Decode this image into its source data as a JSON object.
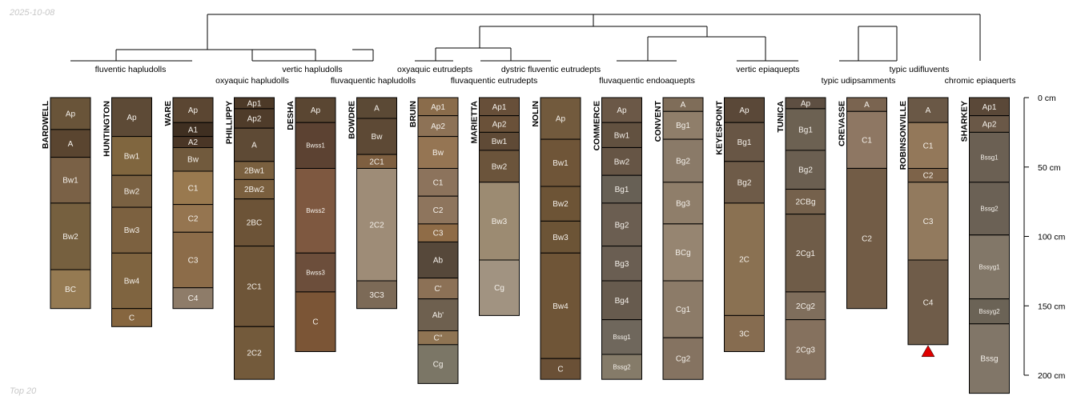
{
  "date_stamp": "2025-10-08",
  "caption": "Top 20",
  "taxa_labels": [
    "fluventic hapludolls",
    "vertic hapludolls",
    "oxyaquic hapludolls",
    "fluvaquentic hapludolls",
    "oxyaquic eutrudepts",
    "dystric fluventic eutrudepts",
    "fluvaquentic eutrudepts",
    "fluvaquentic endoaquepts",
    "vertic epiaquepts",
    "typic udifluvents",
    "typic udipsamments",
    "chromic epiaquerts"
  ],
  "depth_axis": {
    "ticks": [
      0,
      50,
      100,
      150,
      200
    ],
    "unit": "cm"
  },
  "profiles": [
    {
      "name": "BARDWELL",
      "horizons": [
        {
          "name": "Ap",
          "top": 0,
          "bottom": 23,
          "color": "#695439"
        },
        {
          "name": "A",
          "top": 23,
          "bottom": 43,
          "color": "#5a4530"
        },
        {
          "name": "Bw1",
          "top": 43,
          "bottom": 76,
          "color": "#7a6146"
        },
        {
          "name": "Bw2",
          "top": 76,
          "bottom": 124,
          "color": "#76603f"
        },
        {
          "name": "BC",
          "top": 124,
          "bottom": 152,
          "color": "#957a52"
        }
      ]
    },
    {
      "name": "HUNTINGTON",
      "horizons": [
        {
          "name": "Ap",
          "top": 0,
          "bottom": 28,
          "color": "#5d4a36"
        },
        {
          "name": "Bw1",
          "top": 28,
          "bottom": 56,
          "color": "#80663f"
        },
        {
          "name": "Bw2",
          "top": 56,
          "bottom": 79,
          "color": "#7a6142"
        },
        {
          "name": "Bw3",
          "top": 79,
          "bottom": 112,
          "color": "#7c6140"
        },
        {
          "name": "Bw4",
          "top": 112,
          "bottom": 152,
          "color": "#7f6440"
        },
        {
          "name": "C",
          "top": 152,
          "bottom": 165,
          "color": "#86663f"
        }
      ]
    },
    {
      "name": "WARE",
      "horizons": [
        {
          "name": "Ap",
          "top": 0,
          "bottom": 18,
          "color": "#5b4632"
        },
        {
          "name": "A1",
          "top": 18,
          "bottom": 28,
          "color": "#3f2f21"
        },
        {
          "name": "A2",
          "top": 28,
          "bottom": 36,
          "color": "#4a3626"
        },
        {
          "name": "Bw",
          "top": 36,
          "bottom": 53,
          "color": "#715a3d"
        },
        {
          "name": "C1",
          "top": 53,
          "bottom": 77,
          "color": "#99794f"
        },
        {
          "name": "C2",
          "top": 77,
          "bottom": 97,
          "color": "#957550"
        },
        {
          "name": "C3",
          "top": 97,
          "bottom": 137,
          "color": "#8c6c49"
        },
        {
          "name": "C4",
          "top": 137,
          "bottom": 152,
          "color": "#8e7c69"
        }
      ]
    },
    {
      "name": "PHILLIPPY",
      "horizons": [
        {
          "name": "Ap1",
          "top": 0,
          "bottom": 8,
          "color": "#4d3a28"
        },
        {
          "name": "Ap2",
          "top": 8,
          "bottom": 22,
          "color": "#4f3c2a"
        },
        {
          "name": "A",
          "top": 22,
          "bottom": 46,
          "color": "#5e4a35"
        },
        {
          "name": "2Bw1",
          "top": 46,
          "bottom": 59,
          "color": "#7a603f"
        },
        {
          "name": "2Bw2",
          "top": 59,
          "bottom": 73,
          "color": "#7a5f3e"
        },
        {
          "name": "2BC",
          "top": 73,
          "bottom": 107,
          "color": "#6c5337"
        },
        {
          "name": "2C1",
          "top": 107,
          "bottom": 165,
          "color": "#6e5538"
        },
        {
          "name": "2C2",
          "top": 165,
          "bottom": 203,
          "color": "#735a3b"
        }
      ]
    },
    {
      "name": "DESHA",
      "horizons": [
        {
          "name": "Ap",
          "top": 0,
          "bottom": 18,
          "color": "#5a4632"
        },
        {
          "name": "Bwss1",
          "top": 18,
          "bottom": 51,
          "color": "#5c4232"
        },
        {
          "name": "Bwss2",
          "top": 51,
          "bottom": 112,
          "color": "#7e5840"
        },
        {
          "name": "Bwss3",
          "top": 112,
          "bottom": 140,
          "color": "#6c4e3b"
        },
        {
          "name": "C",
          "top": 140,
          "bottom": 183,
          "color": "#7b5536"
        }
      ]
    },
    {
      "name": "BOWDRE",
      "horizons": [
        {
          "name": "A",
          "top": 0,
          "bottom": 15,
          "color": "#5b4935"
        },
        {
          "name": "Bw",
          "top": 15,
          "bottom": 41,
          "color": "#5d4935"
        },
        {
          "name": "2C1",
          "top": 41,
          "bottom": 51,
          "color": "#7e5f40"
        },
        {
          "name": "2C2",
          "top": 51,
          "bottom": 132,
          "color": "#9e8c77"
        },
        {
          "name": "3C3",
          "top": 132,
          "bottom": 152,
          "color": "#7c6a57"
        }
      ]
    },
    {
      "name": "BRUIN",
      "horizons": [
        {
          "name": "Ap1",
          "top": 0,
          "bottom": 13,
          "color": "#8a6c4b"
        },
        {
          "name": "Ap2",
          "top": 13,
          "bottom": 28,
          "color": "#8d7256"
        },
        {
          "name": "Bw",
          "top": 28,
          "bottom": 51,
          "color": "#957553"
        },
        {
          "name": "C1",
          "top": 51,
          "bottom": 71,
          "color": "#8c735c"
        },
        {
          "name": "C2",
          "top": 71,
          "bottom": 91,
          "color": "#8e755d"
        },
        {
          "name": "C3",
          "top": 91,
          "bottom": 104,
          "color": "#8f6c47"
        },
        {
          "name": "Ab",
          "top": 104,
          "bottom": 130,
          "color": "#56483a"
        },
        {
          "name": "C'",
          "top": 130,
          "bottom": 145,
          "color": "#8c7156"
        },
        {
          "name": "Ab'",
          "top": 145,
          "bottom": 168,
          "color": "#6e604f"
        },
        {
          "name": "C''",
          "top": 168,
          "bottom": 178,
          "color": "#8f7453"
        },
        {
          "name": "Cg",
          "top": 178,
          "bottom": 206,
          "color": "#7b7666"
        }
      ]
    },
    {
      "name": "MARIETTA",
      "horizons": [
        {
          "name": "Ap1",
          "top": 0,
          "bottom": 13,
          "color": "#674f39"
        },
        {
          "name": "Ap2",
          "top": 13,
          "bottom": 25,
          "color": "#6a5139"
        },
        {
          "name": "Bw1",
          "top": 25,
          "bottom": 38,
          "color": "#5f4a36"
        },
        {
          "name": "Bw2",
          "top": 38,
          "bottom": 61,
          "color": "#6b543b"
        },
        {
          "name": "Bw3",
          "top": 61,
          "bottom": 117,
          "color": "#9c8b72"
        },
        {
          "name": "Cg",
          "top": 117,
          "bottom": 157,
          "color": "#a19381"
        }
      ]
    },
    {
      "name": "NOLIN",
      "horizons": [
        {
          "name": "Ap",
          "top": 0,
          "bottom": 30,
          "color": "#725a3d"
        },
        {
          "name": "Bw1",
          "top": 30,
          "bottom": 64,
          "color": "#6f5538"
        },
        {
          "name": "Bw2",
          "top": 64,
          "bottom": 89,
          "color": "#6d5436"
        },
        {
          "name": "Bw3",
          "top": 89,
          "bottom": 112,
          "color": "#6c5436"
        },
        {
          "name": "Bw4",
          "top": 112,
          "bottom": 188,
          "color": "#6f5537"
        },
        {
          "name": "C",
          "top": 188,
          "bottom": 203,
          "color": "#6a5036"
        }
      ]
    },
    {
      "name": "COMMERCE",
      "horizons": [
        {
          "name": "Ap",
          "top": 0,
          "bottom": 18,
          "color": "#6b5847"
        },
        {
          "name": "Bw1",
          "top": 18,
          "bottom": 36,
          "color": "#625140"
        },
        {
          "name": "Bw2",
          "top": 36,
          "bottom": 56,
          "color": "#665545"
        },
        {
          "name": "Bg1",
          "top": 56,
          "bottom": 76,
          "color": "#676055"
        },
        {
          "name": "Bg2",
          "top": 76,
          "bottom": 107,
          "color": "#6b5e51"
        },
        {
          "name": "Bg3",
          "top": 107,
          "bottom": 132,
          "color": "#6a5e52"
        },
        {
          "name": "Bg4",
          "top": 132,
          "bottom": 160,
          "color": "#675b4e"
        },
        {
          "name": "Bssg1",
          "top": 160,
          "bottom": 185,
          "color": "#6f675c"
        },
        {
          "name": "Bssg2",
          "top": 185,
          "bottom": 203,
          "color": "#857b69"
        }
      ]
    },
    {
      "name": "CONVENT",
      "horizons": [
        {
          "name": "A",
          "top": 0,
          "bottom": 10,
          "color": "#7f6d59"
        },
        {
          "name": "Bg1",
          "top": 10,
          "bottom": 30,
          "color": "#8f7e6a"
        },
        {
          "name": "Bg2",
          "top": 30,
          "bottom": 61,
          "color": "#8a7a68"
        },
        {
          "name": "Bg3",
          "top": 61,
          "bottom": 91,
          "color": "#8f7e6a"
        },
        {
          "name": "BCg",
          "top": 91,
          "bottom": 132,
          "color": "#968571"
        },
        {
          "name": "Cg1",
          "top": 132,
          "bottom": 173,
          "color": "#8c7b68"
        },
        {
          "name": "Cg2",
          "top": 173,
          "bottom": 203,
          "color": "#857361"
        }
      ]
    },
    {
      "name": "KEYESPOINT",
      "horizons": [
        {
          "name": "Ap",
          "top": 0,
          "bottom": 18,
          "color": "#5a4838"
        },
        {
          "name": "Bg1",
          "top": 18,
          "bottom": 46,
          "color": "#685645"
        },
        {
          "name": "Bg2",
          "top": 46,
          "bottom": 76,
          "color": "#6e5b48"
        },
        {
          "name": "2C",
          "top": 76,
          "bottom": 157,
          "color": "#8a7152"
        },
        {
          "name": "3C",
          "top": 157,
          "bottom": 183,
          "color": "#866c50"
        }
      ]
    },
    {
      "name": "TUNICA",
      "horizons": [
        {
          "name": "Ap",
          "top": 0,
          "bottom": 8,
          "color": "#5e4f42"
        },
        {
          "name": "Bg1",
          "top": 8,
          "bottom": 38,
          "color": "#6c6152"
        },
        {
          "name": "Bg2",
          "top": 38,
          "bottom": 66,
          "color": "#6b5f51"
        },
        {
          "name": "2CBg",
          "top": 66,
          "bottom": 84,
          "color": "#75614c"
        },
        {
          "name": "2Cg1",
          "top": 84,
          "bottom": 140,
          "color": "#6f5c48"
        },
        {
          "name": "2Cg2",
          "top": 140,
          "bottom": 160,
          "color": "#7f6e5c"
        },
        {
          "name": "2Cg3",
          "top": 160,
          "bottom": 203,
          "color": "#85715e"
        }
      ]
    },
    {
      "name": "CREVASSE",
      "horizons": [
        {
          "name": "A",
          "top": 0,
          "bottom": 10,
          "color": "#7a6450"
        },
        {
          "name": "C1",
          "top": 10,
          "bottom": 51,
          "color": "#8e7763"
        },
        {
          "name": "C2",
          "top": 51,
          "bottom": 152,
          "color": "#725c46"
        }
      ]
    },
    {
      "name": "ROBINSONVILLE",
      "horizons": [
        {
          "name": "A",
          "top": 0,
          "bottom": 18,
          "color": "#6a5846"
        },
        {
          "name": "C1",
          "top": 18,
          "bottom": 51,
          "color": "#93785a"
        },
        {
          "name": "C2",
          "top": 51,
          "bottom": 61,
          "color": "#7d6349"
        },
        {
          "name": "C3",
          "top": 61,
          "bottom": 117,
          "color": "#927a5e"
        },
        {
          "name": "C4",
          "top": 117,
          "bottom": 178,
          "color": "#6f5c49"
        }
      ]
    },
    {
      "name": "SHARKEY",
      "horizons": [
        {
          "name": "Ap1",
          "top": 0,
          "bottom": 13,
          "color": "#5a4838"
        },
        {
          "name": "Ap2",
          "top": 13,
          "bottom": 25,
          "color": "#6a5847"
        },
        {
          "name": "Bssg1",
          "top": 25,
          "bottom": 61,
          "color": "#6b6053"
        },
        {
          "name": "Bssg2",
          "top": 61,
          "bottom": 99,
          "color": "#6b6155"
        },
        {
          "name": "Bssyg1",
          "top": 99,
          "bottom": 145,
          "color": "#827768"
        },
        {
          "name": "Bssyg2",
          "top": 145,
          "bottom": 163,
          "color": "#6b6356"
        },
        {
          "name": "Bssg",
          "top": 163,
          "bottom": 213,
          "color": "#817668"
        }
      ]
    }
  ],
  "marker_profile": "ROBINSONVILLE",
  "marker_color": "#e00000"
}
